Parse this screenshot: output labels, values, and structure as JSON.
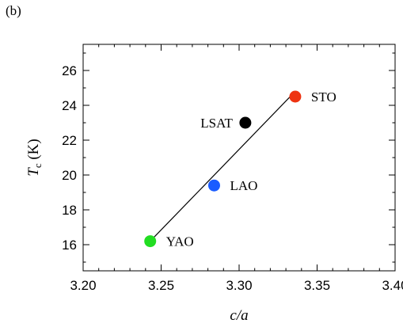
{
  "panel_label": "(b)",
  "chart_data": {
    "type": "scatter",
    "title": "",
    "xlabel": "c/a",
    "ylabel_main": "T",
    "ylabel_sub": "c",
    "ylabel_unit": "(K)",
    "xlim": [
      3.2,
      3.4
    ],
    "ylim": [
      14.5,
      27.5
    ],
    "xticks": [
      3.2,
      3.25,
      3.3,
      3.35,
      3.4
    ],
    "xtick_labels": [
      "3.20",
      "3.25",
      "3.30",
      "3.35",
      "3.40"
    ],
    "yticks": [
      16,
      18,
      20,
      22,
      24,
      26
    ],
    "ytick_labels": [
      "16",
      "18",
      "20",
      "22",
      "24",
      "26"
    ],
    "x_minor_step": 0.01,
    "y_minor_step": 1,
    "grid": false,
    "points": [
      {
        "label": "YAO",
        "x": 3.243,
        "y": 16.2,
        "color": "#22dd22"
      },
      {
        "label": "LAO",
        "x": 3.284,
        "y": 19.4,
        "color": "#1a5cff"
      },
      {
        "label": "LSAT",
        "x": 3.304,
        "y": 23.0,
        "color": "#000000"
      },
      {
        "label": "STO",
        "x": 3.336,
        "y": 24.5,
        "color": "#ee3311"
      }
    ],
    "fit_line": {
      "x": [
        3.243,
        3.336
      ],
      "y": [
        16.2,
        24.8
      ]
    }
  }
}
